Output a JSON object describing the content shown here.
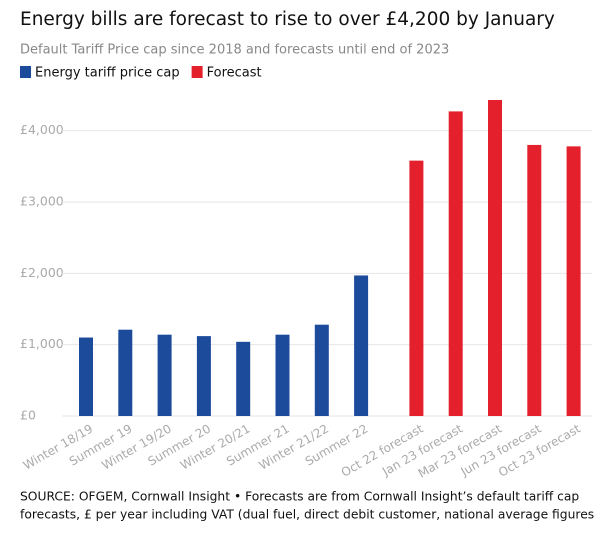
{
  "chart_data": {
    "type": "bar",
    "title": "Energy bills are forecast to rise to over £4,200 by January",
    "subtitle": "Default Tariff Price cap since 2018 and forecasts until end of 2023",
    "categories": [
      "Winter 18/19",
      "Summer 19",
      "Winter 19/20",
      "Summer 20",
      "Winter 20/21",
      "Summer 21",
      "Winter 21/22",
      "Summer 22",
      "Oct 22 forecast",
      "Jan 23 forecast",
      "Mar 23 forecast",
      "Jun 23 forecast",
      "Oct 23 forecast"
    ],
    "series": [
      {
        "name": "Energy tariff price cap",
        "color": "#1c4b9c",
        "values": [
          1100,
          1210,
          1140,
          1120,
          1040,
          1140,
          1280,
          1970,
          null,
          null,
          null,
          null,
          null
        ]
      },
      {
        "name": "Forecast",
        "color": "#e3202b",
        "values": [
          null,
          null,
          null,
          null,
          null,
          null,
          null,
          null,
          3580,
          4270,
          4430,
          3800,
          3780
        ]
      }
    ],
    "ylim": [
      0,
      4500
    ],
    "yticks": [
      {
        "value": 0,
        "label": "£0"
      },
      {
        "value": 1000,
        "label": "£1,000"
      },
      {
        "value": 2000,
        "label": "£2,000"
      },
      {
        "value": 3000,
        "label": "£3,000"
      },
      {
        "value": 4000,
        "label": "£4,000"
      }
    ],
    "grid": true,
    "legend": "top-left",
    "source": [
      "SOURCE: OFGEM, Cornwall Insight • Forecasts are from Cornwall Insight’s default tariff cap",
      "forecasts, £ per year including VAT (dual fuel, direct debit customer, national average figures)"
    ]
  }
}
